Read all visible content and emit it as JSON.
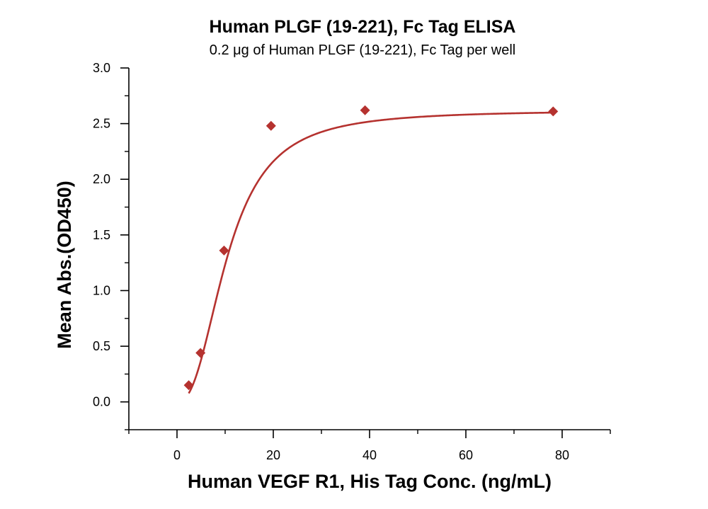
{
  "chart_data": {
    "type": "scatter",
    "title": "Human PLGF (19-221), Fc Tag ELISA",
    "subtitle": "0.2 μg of Human PLGF (19-221), Fc Tag per well",
    "xlabel": "Human VEGF R1, His Tag Conc. (ng/mL)",
    "ylabel": "Mean Abs.(OD450)",
    "xlim": [
      -10,
      90
    ],
    "ylim": [
      -0.25,
      3.0
    ],
    "xticks": [
      0,
      20,
      40,
      60,
      80
    ],
    "yticks": [
      0.0,
      0.5,
      1.0,
      1.5,
      2.0,
      2.5,
      3.0
    ],
    "xtick_labels": [
      "0",
      "20",
      "40",
      "60",
      "80"
    ],
    "ytick_labels": [
      "0.0",
      "0.5",
      "1.0",
      "1.5",
      "2.0",
      "2.5",
      "3.0"
    ],
    "grid": false,
    "series": [
      {
        "marker": "diamond",
        "fit": "4-parameter logistic curve",
        "color": "#b5322f",
        "points": [
          {
            "x": 2.44,
            "y": 0.15
          },
          {
            "x": 4.88,
            "y": 0.44
          },
          {
            "x": 9.77,
            "y": 1.36
          },
          {
            "x": 19.53,
            "y": 2.48
          },
          {
            "x": 39.06,
            "y": 2.62
          },
          {
            "x": 78.13,
            "y": 2.61
          }
        ]
      }
    ]
  }
}
